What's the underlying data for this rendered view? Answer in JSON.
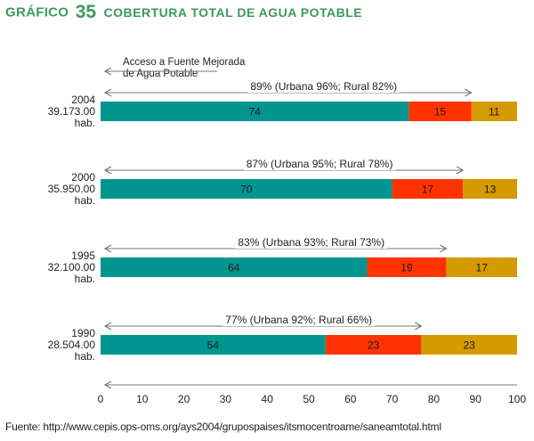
{
  "header": {
    "label": "GRÁFICO",
    "number": "35",
    "caption": "COBERTURA TOTAL DE AGUA POTABLE"
  },
  "chart_data": {
    "type": "bar",
    "orientation": "horizontal",
    "stacked": true,
    "title": "COBERTURA TOTAL DE AGUA POTABLE",
    "legend_note": [
      "Acceso a Fuente Mejorada",
      "de Agua Potable"
    ],
    "xlim": [
      0,
      100
    ],
    "xticks": [
      0,
      10,
      20,
      30,
      40,
      50,
      60,
      70,
      80,
      90,
      100
    ],
    "colors": [
      "#00968f",
      "#ff3300",
      "#d49a00"
    ],
    "rows": [
      {
        "year": "2004",
        "population": "39.173.00",
        "unit": "hab.",
        "values": [
          74,
          15,
          11
        ],
        "access": 89,
        "access_label": "89% (Urbana 96%; Rural 82%)"
      },
      {
        "year": "2000",
        "population": "35.950.00",
        "unit": "hab.",
        "values": [
          70,
          17,
          13
        ],
        "access": 87,
        "access_label": "87% (Urbana 95%; Rural 78%)"
      },
      {
        "year": "1995",
        "population": "32.100.00",
        "unit": "hab.",
        "values": [
          64,
          19,
          17
        ],
        "access": 83,
        "access_label": "83% (Urbana 93%; Rural 73%)"
      },
      {
        "year": "1990",
        "population": "28.504.00",
        "unit": "hab.",
        "values": [
          54,
          23,
          23
        ],
        "access": 77,
        "access_label": "77% (Urbana 92%; Rural 66%)"
      }
    ]
  },
  "footer": {
    "source": "Fuente: http://www.cepis.ops-oms.org/ays2004/grupospaises/itsmocentroame/saneamtotal.html"
  }
}
